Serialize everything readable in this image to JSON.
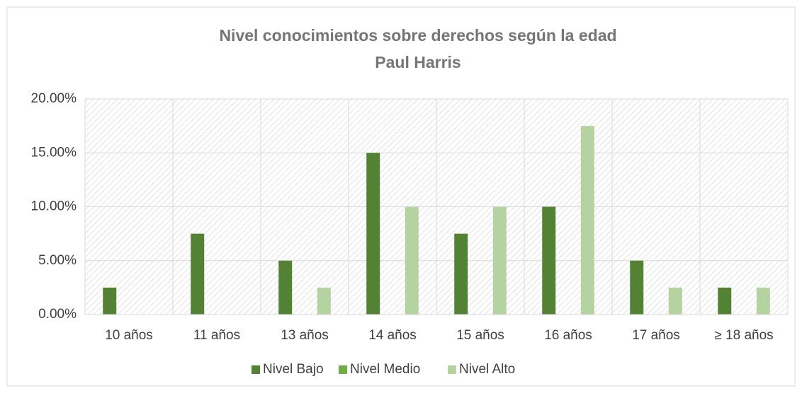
{
  "chart_data": {
    "type": "bar",
    "title": "Nivel conocimientos sobre derechos según la edad",
    "subtitle": "Paul Harris",
    "categories": [
      "10 años",
      "11 años",
      "13 años",
      "14 años",
      "15 años",
      "16 años",
      "17 años",
      "≥ 18 años"
    ],
    "series": [
      {
        "name": "Nivel Bajo",
        "color": "#548235",
        "values": [
          2.5,
          7.5,
          5,
          15,
          7.5,
          10,
          5,
          2.5
        ]
      },
      {
        "name": "Nivel Medio",
        "color": "#70ad47",
        "values": [
          0,
          0,
          0,
          0,
          0,
          0,
          0,
          0
        ]
      },
      {
        "name": "Nivel Alto",
        "color": "#b4d3a0",
        "values": [
          0,
          0,
          2.5,
          10,
          10,
          17.5,
          2.5,
          2.5
        ]
      }
    ],
    "ylim": [
      0,
      20
    ],
    "yticks": [
      {
        "value": 0,
        "label": "0.00%"
      },
      {
        "value": 5,
        "label": "5.00%"
      },
      {
        "value": 10,
        "label": "10.00%"
      },
      {
        "value": 15,
        "label": "15.00%"
      },
      {
        "value": 20,
        "label": "20.00%"
      }
    ],
    "grid": true,
    "legend": "bottom"
  }
}
